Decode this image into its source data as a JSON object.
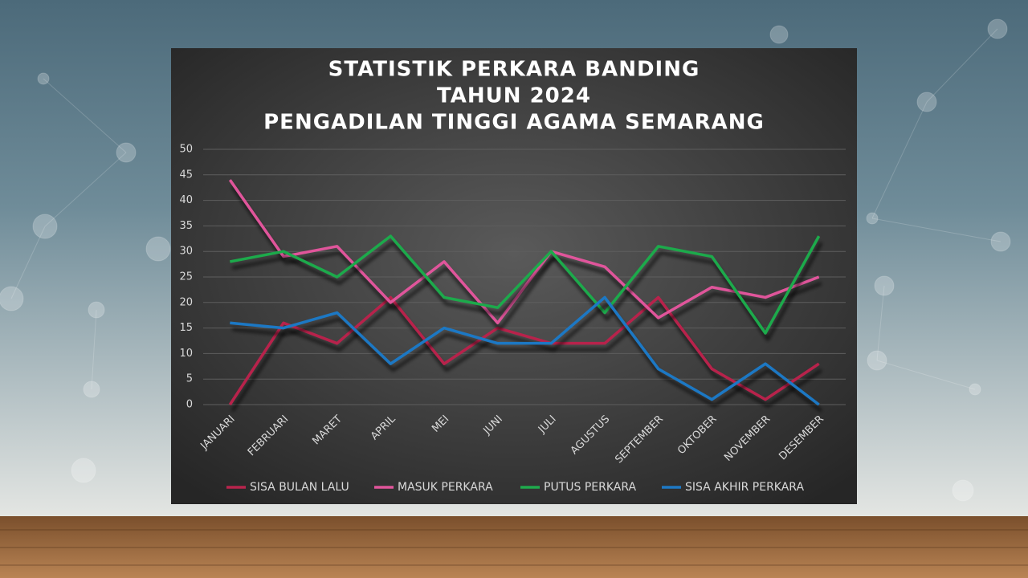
{
  "chart_data": {
    "type": "line",
    "title": [
      "STATISTIK PERKARA BANDING",
      "TAHUN 2024",
      "PENGADILAN TINGGI AGAMA SEMARANG"
    ],
    "categories": [
      "JANUARI",
      "FEBRUARI",
      "MARET",
      "APRIL",
      "MEI",
      "JUNI",
      "JULI",
      "AGUSTUS",
      "SEPTEMBER",
      "OKTOBER",
      "NOVEMBER",
      "DESEMBER"
    ],
    "series": [
      {
        "name": "SISA BULAN LALU",
        "color": "#b8244c",
        "values": [
          0,
          16,
          12,
          21,
          8,
          15,
          12,
          12,
          21,
          7,
          1,
          8
        ]
      },
      {
        "name": "MASUK PERKARA",
        "color": "#e0559b",
        "values": [
          44,
          29,
          31,
          20,
          28,
          16,
          30,
          27,
          17,
          23,
          21,
          25
        ]
      },
      {
        "name": "PUTUS PERKARA",
        "color": "#1faa4c",
        "values": [
          28,
          30,
          25,
          33,
          21,
          19,
          30,
          18,
          31,
          29,
          14,
          33
        ]
      },
      {
        "name": "SISA AKHIR PERKARA",
        "color": "#1e78c4",
        "values": [
          16,
          15,
          18,
          8,
          15,
          12,
          12,
          21,
          7,
          1,
          8,
          0
        ]
      }
    ],
    "ylim": [
      0,
      50
    ],
    "yticks": [
      0,
      5,
      10,
      15,
      20,
      25,
      30,
      35,
      40,
      45,
      50
    ],
    "grid": true,
    "legend": "bottom"
  }
}
